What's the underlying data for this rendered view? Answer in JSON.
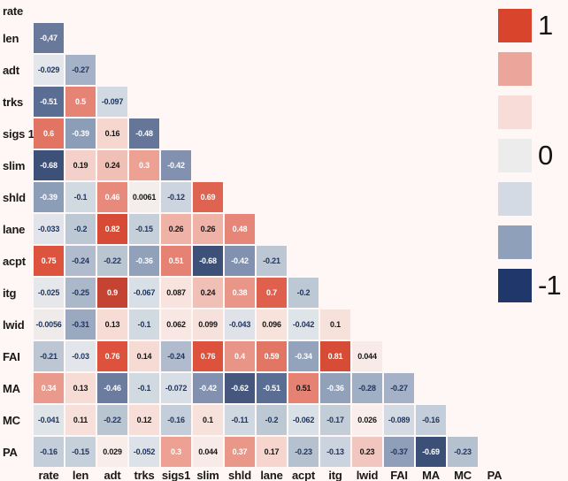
{
  "chart_data": {
    "type": "heatmap",
    "subtype": "correlation-matrix-lower-triangle",
    "title": "",
    "variables": [
      "rate",
      "len",
      "adt",
      "trks",
      "sigs 1",
      "slim",
      "shld",
      "lane",
      "acpt",
      "itg",
      "lwid",
      "FAI",
      "MA",
      "MC",
      "PA"
    ],
    "column_labels": [
      "rate",
      "len",
      "adt",
      "trks",
      "sigs1",
      "slim",
      "shld",
      "lane",
      "acpt",
      "itg",
      "lwid",
      "FAI",
      "MA",
      "MC",
      "PA"
    ],
    "value_range": [
      -1,
      1
    ],
    "rows": [
      {
        "label": "rate",
        "values": []
      },
      {
        "label": "len",
        "values": [
          "-0,47"
        ]
      },
      {
        "label": "adt",
        "values": [
          "-0.029",
          "-0.27"
        ]
      },
      {
        "label": "trks",
        "values": [
          "-0.51",
          "0.5",
          "-0.097"
        ]
      },
      {
        "label": "sigs 1",
        "values": [
          "0.6",
          "-0.39",
          "0.16",
          "-0.48"
        ]
      },
      {
        "label": "slim",
        "values": [
          "-0.68",
          "0.19",
          "0.24",
          "0.3",
          "-0.42"
        ]
      },
      {
        "label": "shld",
        "values": [
          "-0.39",
          "-0.1",
          "0.46",
          "0.0061",
          "-0.12",
          "0.69"
        ]
      },
      {
        "label": "lane",
        "values": [
          "-0.033",
          "-0.2",
          "0.82",
          "-0.15",
          "0.26",
          "0.26",
          "0.48"
        ]
      },
      {
        "label": "acpt",
        "values": [
          "0.75",
          "-0.24",
          "-0.22",
          "-0.36",
          "0.51",
          "-0.68",
          "-0.42",
          "-0.21"
        ]
      },
      {
        "label": "itg",
        "values": [
          "-0.025",
          "-0.25",
          "0.9",
          "-0.067",
          "0.087",
          "0.24",
          "0.38",
          "0.7",
          "-0.2"
        ]
      },
      {
        "label": "lwid",
        "values": [
          "-0.0056",
          "-0.31",
          "0.13",
          "-0.1",
          "0.062",
          "0.099",
          "-0.043",
          "0.096",
          "-0.042",
          "0.1"
        ]
      },
      {
        "label": "FAI",
        "values": [
          "-0.21",
          "-0.03",
          "0.76",
          "0.14",
          "-0.24",
          "0.76",
          "0.4",
          "0.59",
          "-0.34",
          "0.81",
          "0.044"
        ]
      },
      {
        "label": "MA",
        "values": [
          "0.34",
          "0.13",
          "-0.46",
          "-0.1",
          "-0.072",
          "-0.42",
          "-0.62",
          "-0.51",
          "0.51",
          "-0.36",
          "-0.28",
          "-0.27"
        ]
      },
      {
        "label": "MC",
        "values": [
          "-0.041",
          "0.11",
          "-0.22",
          "0.12",
          "-0.16",
          "0.1",
          "-0.11",
          "-0.2",
          "-0.062",
          "-0.17",
          "0.026",
          "-0.089",
          "-0.16"
        ]
      },
      {
        "label": "PA",
        "values": [
          "-0.16",
          "-0.15",
          "0.029",
          "-0.052",
          "0.3",
          "0.044",
          "0.37",
          "0.17",
          "-0.23",
          "-0.13",
          "0.23",
          "-0.37",
          "-0.69",
          "-0.23"
        ]
      }
    ],
    "legend": {
      "tick_labels": [
        "1",
        "0",
        "-1"
      ],
      "tick_slots": [
        0,
        3,
        6
      ],
      "swatch_colors": [
        "#d9452c",
        "#eba59b",
        "#f8dcd7",
        "#ececec",
        "#d3dae3",
        "#8fa0ba",
        "#20376b"
      ],
      "position": "right"
    }
  },
  "style": {
    "background": "#fff7f5",
    "text_white": "#ffffff",
    "text_dark": "#161616",
    "text_navy": "#1f3560",
    "label_color": "#191919",
    "colorscale_anchors": [
      [
        -1.0,
        "#1f3767"
      ],
      [
        -0.68,
        "#3d5178"
      ],
      [
        -0.6,
        "#47597f"
      ],
      [
        -0.51,
        "#5a6d92"
      ],
      [
        -0.46,
        "#6c7c9e"
      ],
      [
        -0.4,
        "#8b9cb7"
      ],
      [
        -0.33,
        "#95a4bd"
      ],
      [
        -0.26,
        "#a6b3c7"
      ],
      [
        -0.22,
        "#bac5d2"
      ],
      [
        -0.15,
        "#c6d0db"
      ],
      [
        -0.08,
        "#d5dce4"
      ],
      [
        -0.03,
        "#e2e6eb"
      ],
      [
        0.0,
        "#f1ecea"
      ],
      [
        0.02,
        "#f9efec"
      ],
      [
        0.06,
        "#f8e7e2"
      ],
      [
        0.12,
        "#f7ded8"
      ],
      [
        0.18,
        "#f4d3cc"
      ],
      [
        0.23,
        "#f1c6be"
      ],
      [
        0.27,
        "#eeab9f"
      ],
      [
        0.31,
        "#eb9d8f"
      ],
      [
        0.4,
        "#e89486"
      ],
      [
        0.48,
        "#e68678"
      ],
      [
        0.55,
        "#e37d6d"
      ],
      [
        0.62,
        "#e0715e"
      ],
      [
        0.69,
        "#de6350"
      ],
      [
        0.73,
        "#dd5742"
      ],
      [
        0.78,
        "#dc4f38"
      ],
      [
        0.85,
        "#d04835"
      ],
      [
        0.92,
        "#bf4132"
      ],
      [
        1.0,
        "#b93c2d"
      ]
    ],
    "white_text_thresholds": {
      "positive": 0.29,
      "negative": -0.33
    },
    "text_color_overrides": [
      {
        "row": 12,
        "col": 8,
        "color": "dark"
      },
      {
        "row": 14,
        "col": 11,
        "color": "navy"
      }
    ]
  }
}
